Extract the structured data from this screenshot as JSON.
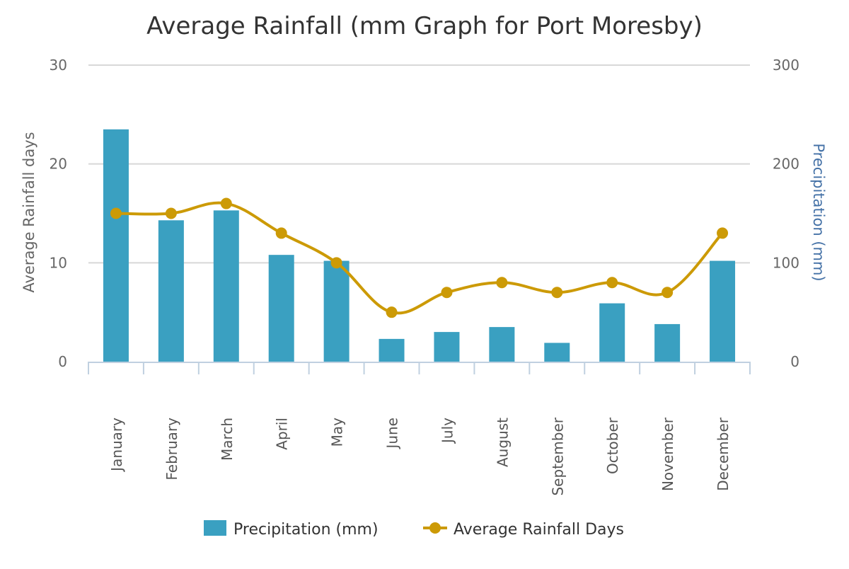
{
  "chart_data": {
    "type": "bar+line",
    "title": "Average Rainfall (mm Graph for Port Moresby)",
    "categories": [
      "January",
      "February",
      "March",
      "April",
      "May",
      "June",
      "July",
      "August",
      "September",
      "October",
      "November",
      "December"
    ],
    "series": [
      {
        "name": "Precipitation (mm)",
        "type": "bar",
        "axis": "right",
        "color": "#3aa0c1",
        "values": [
          235,
          143,
          153,
          108,
          102,
          23,
          30,
          35,
          19,
          59,
          38,
          102
        ]
      },
      {
        "name": "Average Rainfall Days",
        "type": "line",
        "axis": "left",
        "color": "#cc9a06",
        "values": [
          15,
          15,
          16,
          13,
          10,
          5,
          7,
          8,
          7,
          8,
          7,
          13
        ]
      }
    ],
    "left_axis": {
      "label": "Average Rainfall days",
      "range": [
        0,
        30
      ],
      "ticks": [
        "0",
        "10",
        "20",
        "30"
      ]
    },
    "right_axis": {
      "label": "Precipitation (mm)",
      "range": [
        0,
        300
      ],
      "ticks": [
        "0",
        "100",
        "200",
        "300"
      ],
      "color": "#4572a7"
    },
    "grid": true,
    "legend": "bottom-center"
  }
}
